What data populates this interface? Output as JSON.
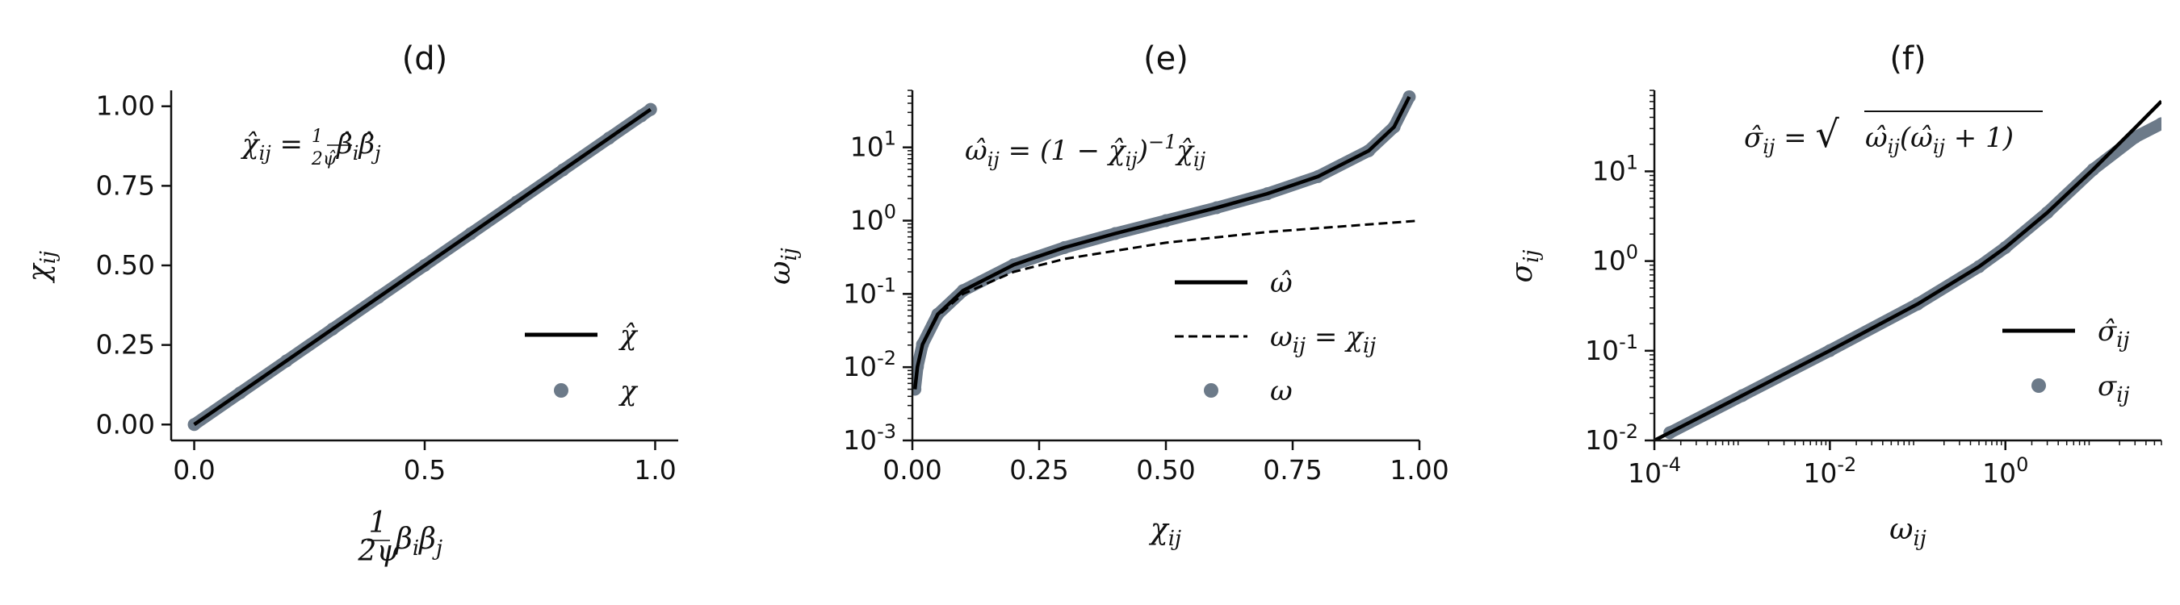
{
  "chart_data": [
    {
      "type": "scatter",
      "title": "(d)",
      "xlabel": "1/2ψ β_i β_j",
      "ylabel": "χ_ij",
      "xlim": [
        -0.05,
        1.05
      ],
      "ylim": [
        -0.05,
        1.05
      ],
      "xticks": [
        0.0,
        0.5,
        1.0
      ],
      "xtick_labels": [
        "0.0",
        "0.5",
        "1.0"
      ],
      "yticks": [
        0.0,
        0.25,
        0.5,
        0.75,
        1.0
      ],
      "ytick_labels": [
        "0.00",
        "0.25",
        "0.50",
        "0.75",
        "1.00"
      ],
      "annotation": "χ̂_ij = 1/2ψ̂ β̂_i β̂_j",
      "legend_position": "lower-right",
      "series": [
        {
          "name": "χ̂",
          "kind": "line",
          "style": "solid",
          "color": "#000000",
          "x": [
            0.0,
            0.99
          ],
          "y": [
            0.0,
            0.99
          ]
        },
        {
          "name": "χ",
          "kind": "scatter",
          "color": "#6c7a89",
          "x": [
            0.0,
            0.1,
            0.2,
            0.3,
            0.4,
            0.5,
            0.6,
            0.7,
            0.8,
            0.9,
            0.97,
            0.99
          ],
          "y": [
            0.0,
            0.1,
            0.2,
            0.3,
            0.4,
            0.5,
            0.6,
            0.7,
            0.8,
            0.9,
            0.97,
            0.99
          ]
        }
      ]
    },
    {
      "type": "line",
      "title": "(e)",
      "xlabel": "χ_ij",
      "ylabel": "ω_ij",
      "xlim": [
        0.0,
        1.0
      ],
      "ylim": [
        0.001,
        60
      ],
      "yscale": "log",
      "xticks": [
        0.0,
        0.25,
        0.5,
        0.75,
        1.0
      ],
      "xtick_labels": [
        "0.00",
        "0.25",
        "0.50",
        "0.75",
        "1.00"
      ],
      "yticks": [
        0.001,
        0.01,
        0.1,
        1,
        10
      ],
      "ytick_exponents": [
        "-3",
        "-2",
        "-1",
        "0",
        "1"
      ],
      "annotation": "ω̂_ij = (1 − χ̂_ij)^−1 χ̂_ij",
      "legend_position": "center-right",
      "series": [
        {
          "name": "ω̂",
          "kind": "line",
          "style": "solid",
          "color": "#000000",
          "x": [
            0.005,
            0.01,
            0.02,
            0.05,
            0.1,
            0.2,
            0.3,
            0.4,
            0.5,
            0.6,
            0.7,
            0.8,
            0.9,
            0.95,
            0.98
          ],
          "y": [
            0.005,
            0.0101,
            0.0204,
            0.0526,
            0.111,
            0.25,
            0.429,
            0.667,
            1.0,
            1.5,
            2.33,
            4.0,
            9.0,
            19.0,
            49.0
          ]
        },
        {
          "name": "ω_ij = χ_ij",
          "kind": "line",
          "style": "dashed",
          "color": "#000000",
          "x": [
            0.005,
            0.01,
            0.02,
            0.05,
            0.1,
            0.2,
            0.3,
            0.5,
            0.7,
            1.0
          ],
          "y": [
            0.005,
            0.01,
            0.02,
            0.05,
            0.1,
            0.2,
            0.3,
            0.5,
            0.7,
            1.0
          ]
        },
        {
          "name": "ω",
          "kind": "scatter",
          "color": "#6c7a89",
          "x": [
            0.005,
            0.01,
            0.02,
            0.05,
            0.1,
            0.2,
            0.3,
            0.4,
            0.5,
            0.6,
            0.7,
            0.8,
            0.9,
            0.95,
            0.98
          ],
          "y": [
            0.005,
            0.0101,
            0.0204,
            0.0526,
            0.111,
            0.25,
            0.429,
            0.667,
            1.0,
            1.5,
            2.33,
            4.0,
            9.0,
            19.0,
            49.0
          ]
        }
      ]
    },
    {
      "type": "line",
      "title": "(f)",
      "xlabel": "ω_ij",
      "ylabel": "σ_ij",
      "xlim": [
        0.0001,
        60
      ],
      "ylim": [
        0.01,
        80
      ],
      "xscale": "log",
      "yscale": "log",
      "xticks": [
        0.0001,
        0.01,
        1
      ],
      "xtick_exponents": [
        "-4",
        "-2",
        "0"
      ],
      "yticks": [
        0.01,
        0.1,
        1,
        10
      ],
      "ytick_exponents": [
        "-2",
        "-1",
        "0",
        "1"
      ],
      "annotation": "σ̂_ij = √(ω̂_ij (ω̂_ij + 1))",
      "legend_position": "center-right",
      "series": [
        {
          "name": "σ̂_ij",
          "kind": "line",
          "style": "solid",
          "color": "#000000",
          "x": [
            0.0001,
            0.001,
            0.01,
            0.1,
            0.5,
            1,
            3,
            10,
            30,
            60
          ],
          "y": [
            0.01,
            0.0316,
            0.1005,
            0.3317,
            0.866,
            1.414,
            3.464,
            10.49,
            30.5,
            60.5
          ]
        },
        {
          "name": "σ_ij",
          "kind": "scatter",
          "color": "#6c7a89",
          "x": [
            0.00015,
            0.001,
            0.01,
            0.1,
            0.5,
            1,
            3,
            10,
            30,
            60
          ],
          "y": [
            0.0122,
            0.0316,
            0.1005,
            0.3317,
            0.866,
            1.414,
            3.464,
            10.49,
            24,
            34
          ]
        }
      ]
    }
  ]
}
